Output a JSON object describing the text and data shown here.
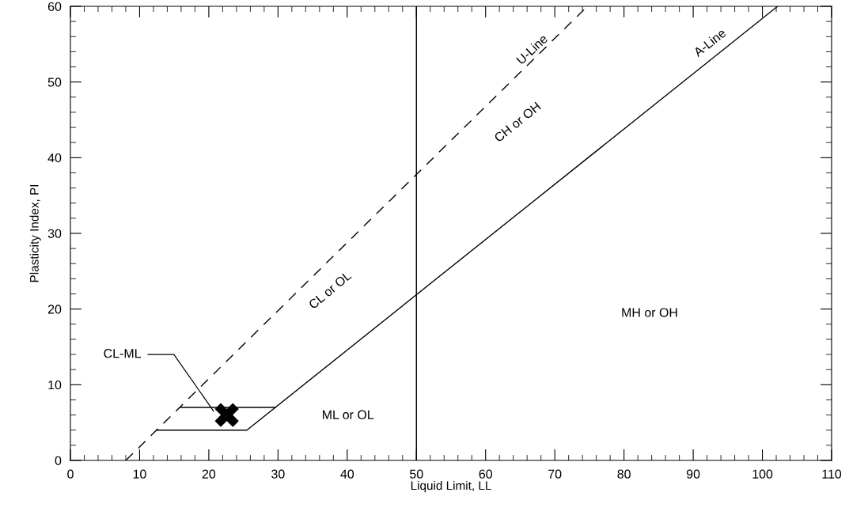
{
  "chart_data": {
    "type": "line",
    "xlabel": "Liquid Limit, LL",
    "ylabel": "Plasticity Index, PI",
    "xlim": [
      0,
      110
    ],
    "ylim": [
      0,
      60
    ],
    "xticks": [
      0,
      10,
      20,
      30,
      40,
      50,
      60,
      70,
      80,
      90,
      100,
      110
    ],
    "yticks": [
      0,
      10,
      20,
      30,
      40,
      50,
      60
    ],
    "grid": false,
    "legend": false,
    "series": [
      {
        "color": "#000000",
        "line_style": "solid",
        "x": [
          12.5,
          25.5,
          102.2
        ],
        "values": [
          4,
          4,
          60
        ]
      },
      {
        "color": "#000000",
        "line_style": "solid",
        "x": [
          15.9,
          29.6
        ],
        "values": [
          7,
          7
        ]
      },
      {
        "color": "#000000",
        "line_style": "dashed",
        "x": [
          8,
          74.7
        ],
        "values": [
          0,
          60
        ]
      },
      {
        "type": "scatter",
        "color": "#000000",
        "marker": "cross",
        "x": [
          22.6
        ],
        "values": [
          6
        ]
      }
    ],
    "ref_lines": [
      {
        "axis": "x",
        "value": 50,
        "color": "#000000",
        "line_style": "solid"
      }
    ],
    "annotations": [
      "U-Line",
      "A-Line",
      "CH or OH",
      "CL or OL",
      "ML or OL",
      "MH or OH",
      {
        "text": "CL-ML",
        "x": 20.7,
        "y": 6.5
      }
    ]
  }
}
